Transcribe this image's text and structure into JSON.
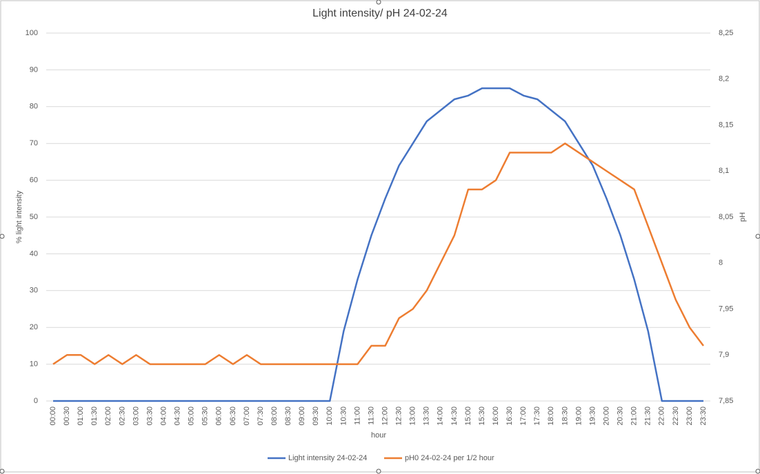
{
  "chart_data": {
    "type": "line",
    "title": "Light intensity/ pH 24-02-24",
    "x_label": "hour",
    "y_label": "% light intensity",
    "y2_label": "pH",
    "categories": [
      "00:00",
      "00:30",
      "01:00",
      "01:30",
      "02:00",
      "02:30",
      "03:00",
      "03:30",
      "04:00",
      "04:30",
      "05:00",
      "05:30",
      "06:00",
      "06:30",
      "07:00",
      "07:30",
      "08:00",
      "08:30",
      "09:00",
      "09:30",
      "10:00",
      "10:30",
      "11:00",
      "11:30",
      "12:00",
      "12:30",
      "13:00",
      "13:30",
      "14:00",
      "14:30",
      "15:00",
      "15:30",
      "16:00",
      "16:30",
      "17:00",
      "17:30",
      "18:00",
      "18:30",
      "19:00",
      "19:30",
      "20:00",
      "20:30",
      "21:00",
      "21:30",
      "22:00",
      "22:30",
      "23:00",
      "23:30"
    ],
    "series": [
      {
        "name": "Light intensity 24-02-24",
        "color": "#4472c4",
        "axis": "y",
        "values": [
          0,
          0,
          0,
          0,
          0,
          0,
          0,
          0,
          0,
          0,
          0,
          0,
          0,
          0,
          0,
          0,
          0,
          0,
          0,
          0,
          0,
          19,
          33,
          45,
          55,
          64,
          70,
          76,
          79,
          82,
          83,
          85,
          85,
          85,
          83,
          82,
          79,
          76,
          70,
          64,
          55,
          45,
          33,
          19,
          0,
          0,
          0,
          0
        ]
      },
      {
        "name": "pH0 24-02-24 per 1/2 hour",
        "color": "#ed7d31",
        "axis": "y2",
        "values": [
          7.89,
          7.9,
          7.9,
          7.89,
          7.9,
          7.89,
          7.9,
          7.89,
          7.89,
          7.89,
          7.89,
          7.89,
          7.9,
          7.89,
          7.9,
          7.89,
          7.89,
          7.89,
          7.89,
          7.89,
          7.89,
          7.89,
          7.89,
          7.91,
          7.91,
          7.94,
          7.95,
          7.97,
          8.0,
          8.03,
          8.08,
          8.08,
          8.09,
          8.12,
          8.12,
          8.12,
          8.12,
          8.13,
          8.12,
          8.11,
          8.1,
          8.09,
          8.08,
          8.04,
          8.0,
          7.96,
          7.93,
          7.91
        ]
      }
    ],
    "ylim": [
      0,
      100
    ],
    "yticks": [
      0,
      10,
      20,
      30,
      40,
      50,
      60,
      70,
      80,
      90,
      100
    ],
    "y2lim": [
      7.85,
      8.25
    ],
    "y2ticks": [
      {
        "value": 7.85,
        "label": "7,85"
      },
      {
        "value": 7.9,
        "label": "7,9"
      },
      {
        "value": 7.95,
        "label": "7,95"
      },
      8,
      {
        "value": 8.05,
        "label": "8,05"
      },
      {
        "value": 8.1,
        "label": "8,1"
      },
      {
        "value": 8.15,
        "label": "8,15"
      },
      {
        "value": 8.2,
        "label": "8,2"
      },
      {
        "value": 8.25,
        "label": "8,25"
      }
    ],
    "grid": true,
    "legend": "bottom"
  }
}
